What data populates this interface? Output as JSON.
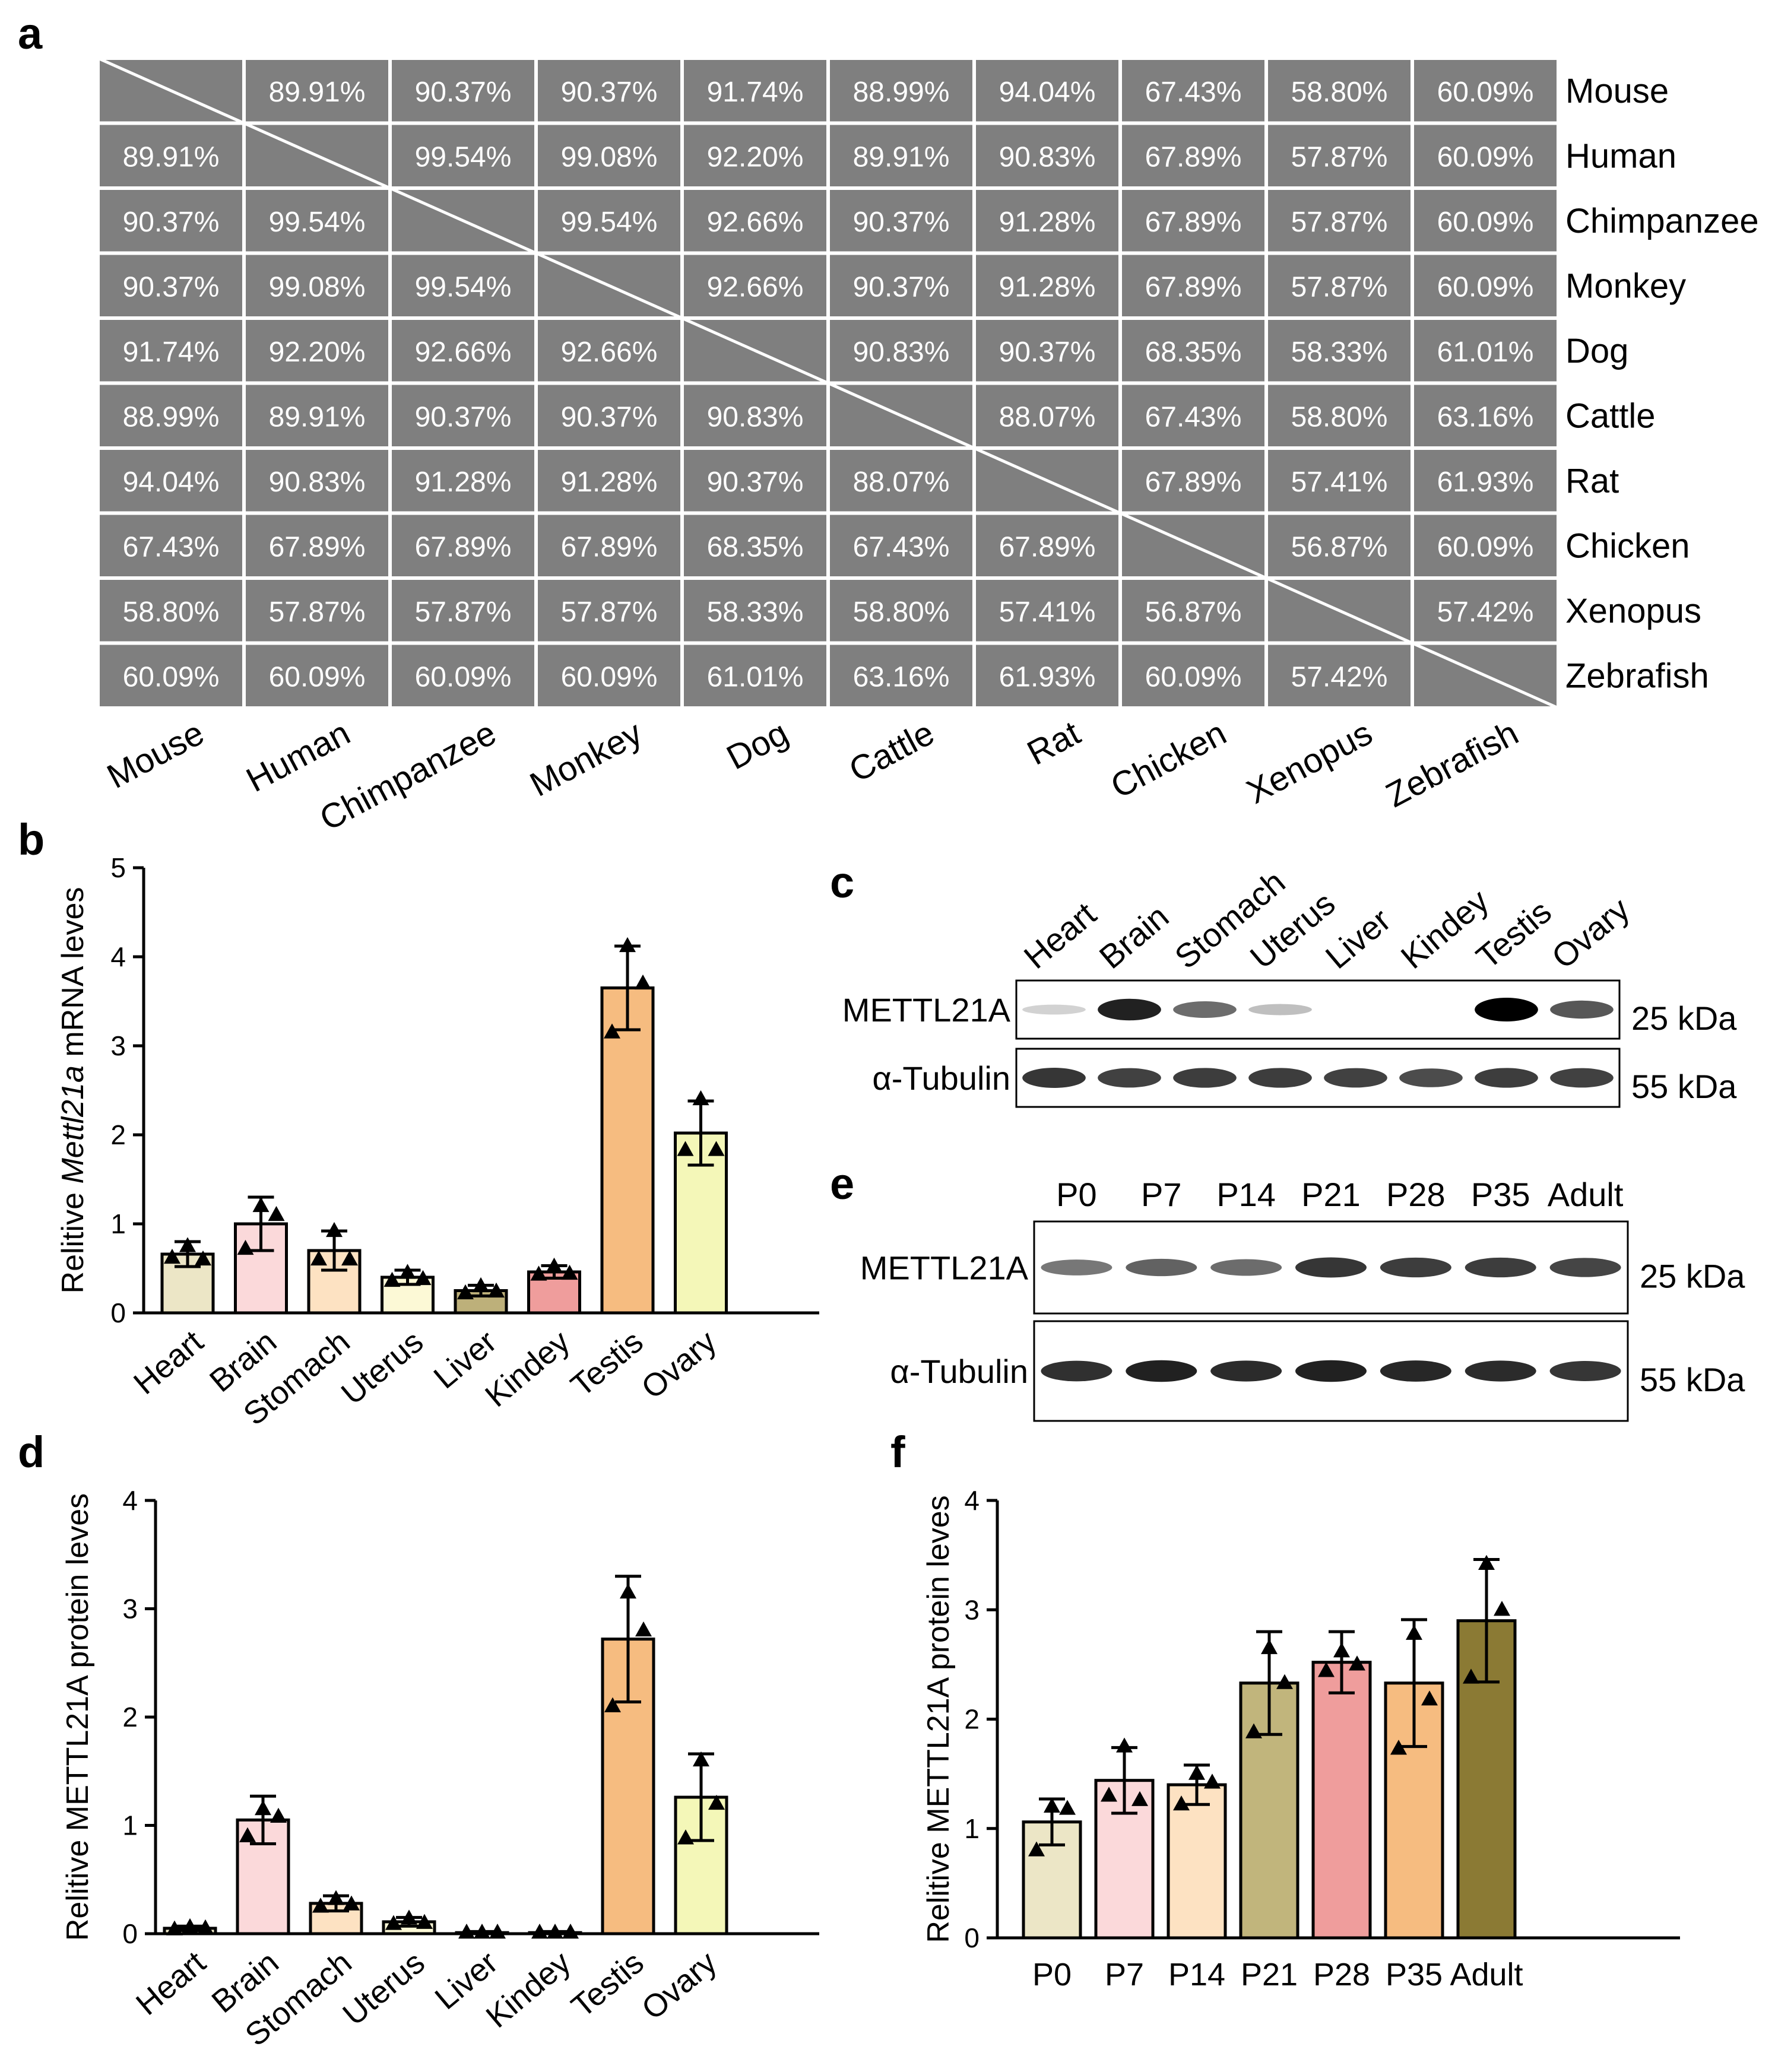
{
  "panel_labels": {
    "a": "a",
    "b": "b",
    "c": "c",
    "d": "d",
    "e": "e",
    "f": "f"
  },
  "chart_data": [
    {
      "panel": "a",
      "type": "heatmap",
      "title": "",
      "species": [
        "Mouse",
        "Human",
        "Chimpanzee",
        "Monkey",
        "Dog",
        "Cattle",
        "Rat",
        "Chicken",
        "Xenopus",
        "Zebrafish"
      ],
      "matrix": [
        [
          "",
          "89.91%",
          "90.37%",
          "90.37%",
          "91.74%",
          "88.99%",
          "94.04%",
          "67.43%",
          "58.80%",
          "60.09%"
        ],
        [
          "89.91%",
          "",
          "99.54%",
          "99.08%",
          "92.20%",
          "89.91%",
          "90.83%",
          "67.89%",
          "57.87%",
          "60.09%"
        ],
        [
          "90.37%",
          "99.54%",
          "",
          "99.54%",
          "92.66%",
          "90.37%",
          "91.28%",
          "67.89%",
          "57.87%",
          "60.09%"
        ],
        [
          "90.37%",
          "99.08%",
          "99.54%",
          "",
          "92.66%",
          "90.37%",
          "91.28%",
          "67.89%",
          "57.87%",
          "60.09%"
        ],
        [
          "91.74%",
          "92.20%",
          "92.66%",
          "92.66%",
          "",
          "90.83%",
          "90.37%",
          "68.35%",
          "58.33%",
          "61.01%"
        ],
        [
          "88.99%",
          "89.91%",
          "90.37%",
          "90.37%",
          "90.83%",
          "",
          "88.07%",
          "67.43%",
          "58.80%",
          "63.16%"
        ],
        [
          "94.04%",
          "90.83%",
          "91.28%",
          "91.28%",
          "90.37%",
          "88.07%",
          "",
          "67.89%",
          "57.41%",
          "61.93%"
        ],
        [
          "67.43%",
          "67.89%",
          "67.89%",
          "67.89%",
          "68.35%",
          "67.43%",
          "67.89%",
          "",
          "56.87%",
          "60.09%"
        ],
        [
          "58.80%",
          "57.87%",
          "57.87%",
          "57.87%",
          "58.33%",
          "58.80%",
          "57.41%",
          "56.87%",
          "",
          "57.42%"
        ],
        [
          "60.09%",
          "60.09%",
          "60.09%",
          "60.09%",
          "61.01%",
          "63.16%",
          "61.93%",
          "60.09%",
          "57.42%",
          ""
        ]
      ],
      "cell_color": "#7f7f7f"
    },
    {
      "panel": "b",
      "type": "bar",
      "categories": [
        "Heart",
        "Brain",
        "Stomach",
        "Uterus",
        "Liver",
        "Kindey",
        "Testis",
        "Ovary"
      ],
      "values": [
        0.66,
        1.0,
        0.7,
        0.4,
        0.25,
        0.46,
        3.65,
        2.02
      ],
      "errors": [
        0.14,
        0.3,
        0.22,
        0.08,
        0.06,
        0.07,
        0.47,
        0.36
      ],
      "points": [
        [
          0.75,
          0.6,
          0.62
        ],
        [
          1.2,
          1.1,
          0.72
        ],
        [
          0.92,
          0.6,
          0.6
        ],
        [
          0.45,
          0.38,
          0.36
        ],
        [
          0.3,
          0.24,
          0.22
        ],
        [
          0.52,
          0.44,
          0.43
        ],
        [
          4.12,
          3.7,
          3.15
        ],
        [
          2.4,
          1.83,
          1.83
        ]
      ],
      "colors": [
        "#ece6c6",
        "#fbd9da",
        "#fde2c2",
        "#fcf9d6",
        "#bdb07a",
        "#ef9d9c",
        "#f6bc80",
        "#f4f7b8"
      ],
      "ylabel_pre": "Relitive ",
      "ylabel_it": "Mettl21a",
      "ylabel_post": " mRNA leves",
      "ylim": [
        0,
        5
      ],
      "yticks": [
        "0",
        "1",
        "2",
        "3",
        "4",
        "5"
      ]
    },
    {
      "panel": "d",
      "type": "bar",
      "categories": [
        "Heart",
        "Brain",
        "Stomach",
        "Uterus",
        "Liver",
        "Kindey",
        "Testis",
        "Ovary"
      ],
      "values": [
        0.05,
        1.05,
        0.28,
        0.11,
        0.01,
        0.01,
        2.72,
        1.26
      ],
      "errors": [
        0.02,
        0.22,
        0.07,
        0.04,
        0.01,
        0.01,
        0.58,
        0.4
      ],
      "points": [
        [
          0.06,
          0.05,
          0.04
        ],
        [
          1.15,
          1.08,
          0.9
        ],
        [
          0.32,
          0.27,
          0.25
        ],
        [
          0.14,
          0.1,
          0.09
        ],
        [
          0.01,
          0.01,
          0.01
        ],
        [
          0.01,
          0.01,
          0.01
        ],
        [
          3.15,
          2.8,
          2.1
        ],
        [
          1.6,
          1.2,
          0.88
        ]
      ],
      "colors": [
        "#ece6c6",
        "#fbd9da",
        "#fde2c2",
        "#fcf9d6",
        "#bdb07a",
        "#ef9d9c",
        "#f6bc80",
        "#f4f7b8"
      ],
      "ylabel": "Relitive METTL21A protein leves",
      "ylim": [
        0,
        4
      ],
      "yticks": [
        "0",
        "1",
        "2",
        "3",
        "4"
      ]
    },
    {
      "panel": "f",
      "type": "bar",
      "categories": [
        "P0",
        "P7",
        "P14",
        "P21",
        "P28",
        "P35",
        "Adult"
      ],
      "values": [
        1.06,
        1.44,
        1.4,
        2.33,
        2.52,
        2.33,
        2.9
      ],
      "errors": [
        0.21,
        0.3,
        0.18,
        0.47,
        0.28,
        0.58,
        0.56
      ],
      "points": [
        [
          1.2,
          1.18,
          0.8
        ],
        [
          1.75,
          1.26,
          1.3
        ],
        [
          1.5,
          1.42,
          1.22
        ],
        [
          2.65,
          2.33,
          1.88
        ],
        [
          2.62,
          2.5,
          2.44
        ],
        [
          2.78,
          2.18,
          1.73
        ],
        [
          3.42,
          3.0,
          2.38
        ]
      ],
      "colors": [
        "#ece6c6",
        "#fbd9da",
        "#fde2c2",
        "#c1b57c",
        "#ef9d9c",
        "#f6bc80",
        "#8b7a34"
      ],
      "ylabel": "Relitive METTL21A protein leves",
      "ylim": [
        0,
        4
      ],
      "yticks": [
        "0",
        "1",
        "2",
        "3",
        "4"
      ]
    }
  ],
  "blot_c": {
    "lanes": [
      "Heart",
      "Brain",
      "Stomach",
      "Uterus",
      "Liver",
      "Kindey",
      "Testis",
      "Ovary"
    ],
    "rows": [
      {
        "label": "METTL21A",
        "size": "25 kDa",
        "intensity": [
          0.03,
          0.85,
          0.5,
          0.12,
          0.0,
          0.0,
          1.0,
          0.6
        ]
      },
      {
        "label": "α-Tubulin",
        "size": "55 kDa",
        "intensity": [
          0.75,
          0.7,
          0.72,
          0.72,
          0.7,
          0.65,
          0.72,
          0.7
        ]
      }
    ]
  },
  "blot_e": {
    "lanes": [
      "P0",
      "P7",
      "P14",
      "P21",
      "P28",
      "P35",
      "Adult"
    ],
    "rows": [
      {
        "label": "METTL21A",
        "size": "25 kDa",
        "intensity": [
          0.45,
          0.55,
          0.5,
          0.75,
          0.72,
          0.72,
          0.68
        ]
      },
      {
        "label": "α-Tubulin",
        "size": "55 kDa",
        "intensity": [
          0.78,
          0.85,
          0.8,
          0.85,
          0.82,
          0.8,
          0.75
        ]
      }
    ]
  }
}
